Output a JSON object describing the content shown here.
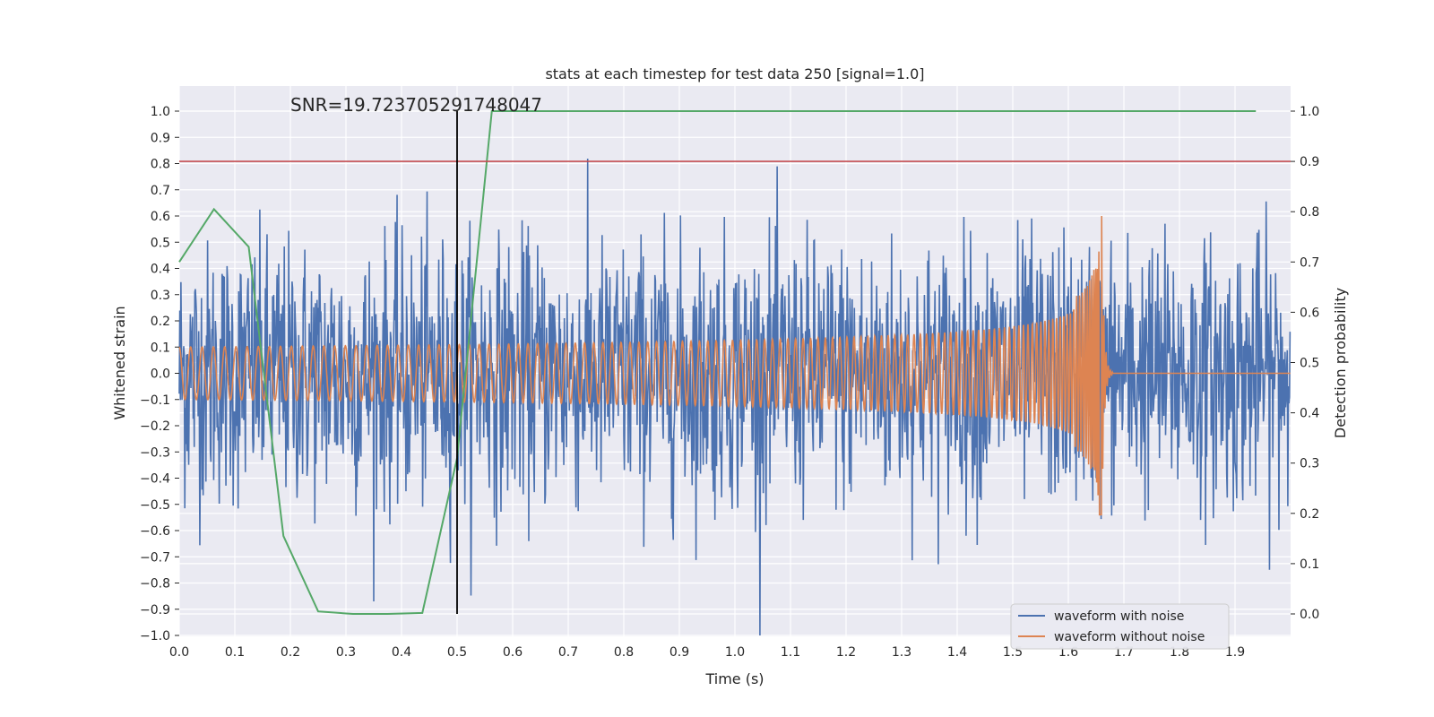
{
  "chart_data": {
    "type": "line",
    "title": "stats at each timestep for test data 250 [signal=1.0]",
    "xlabel": "Time (s)",
    "ylabel": "Whitened strain",
    "y2label": "Detection probability",
    "annotation": "SNR=19.723705291748047",
    "xlim": [
      0.0,
      2.0
    ],
    "ylim": [
      -1.0,
      1.08
    ],
    "y2lim": [
      -0.0,
      1.0
    ],
    "x_ticks": [
      "0.0",
      "0.1",
      "0.2",
      "0.3",
      "0.4",
      "0.5",
      "0.6",
      "0.7",
      "0.8",
      "0.9",
      "1.0",
      "1.1",
      "1.2",
      "1.3",
      "1.4",
      "1.5",
      "1.6",
      "1.7",
      "1.8",
      "1.9"
    ],
    "y_ticks": [
      "1.0",
      "0.9",
      "0.8",
      "0.7",
      "0.6",
      "0.5",
      "0.4",
      "0.3",
      "0.2",
      "0.1",
      "0.0",
      "−0.1",
      "−0.2",
      "−0.3",
      "−0.4",
      "−0.5",
      "−0.6",
      "−0.7",
      "−0.8",
      "−0.9",
      "−1.0"
    ],
    "y2_ticks": [
      "1.0",
      "0.9",
      "0.8",
      "0.7",
      "0.6",
      "0.5",
      "0.4",
      "0.3",
      "0.2",
      "0.1",
      "0.0"
    ],
    "threshold": {
      "y2": 0.9,
      "color": "#c44e52"
    },
    "vertical_marker": {
      "x": 0.5,
      "color": "#000000"
    },
    "legend": {
      "position": "lower-right",
      "entries": [
        "waveform with noise",
        "waveform without noise"
      ]
    },
    "series": [
      {
        "name": "waveform with noise",
        "color": "#4c72b0",
        "axis": "left",
        "generated": "noise",
        "amplitude": 0.25,
        "peak": 1.0
      },
      {
        "name": "waveform without noise",
        "color": "#dd8452",
        "axis": "left",
        "generated": "chirp",
        "start_amplitude": 0.1,
        "peak_amplitude": 0.6,
        "merger_time": 1.66,
        "ringdown_end": 1.68
      },
      {
        "name": "detection probability",
        "color": "#55a868",
        "axis": "right",
        "x": [
          0.0,
          0.0625,
          0.125,
          0.1875,
          0.25,
          0.3125,
          0.375,
          0.4375,
          0.5,
          0.5625,
          0.625,
          0.6875,
          0.75,
          0.8125,
          0.875,
          0.9375,
          1.0,
          1.0625,
          1.125,
          1.1875,
          1.25,
          1.3125,
          1.375,
          1.4375,
          1.5,
          1.5625,
          1.625,
          1.6875,
          1.75,
          1.8125,
          1.875,
          1.9375
        ],
        "values": [
          0.7,
          0.805,
          0.73,
          0.155,
          0.005,
          0.0,
          0.0,
          0.002,
          0.31,
          1.0,
          1.0,
          1.0,
          1.0,
          1.0,
          1.0,
          1.0,
          1.0,
          1.0,
          1.0,
          1.0,
          1.0,
          1.0,
          1.0,
          1.0,
          1.0,
          1.0,
          1.0,
          1.0,
          1.0,
          1.0,
          1.0,
          1.0
        ]
      }
    ]
  }
}
